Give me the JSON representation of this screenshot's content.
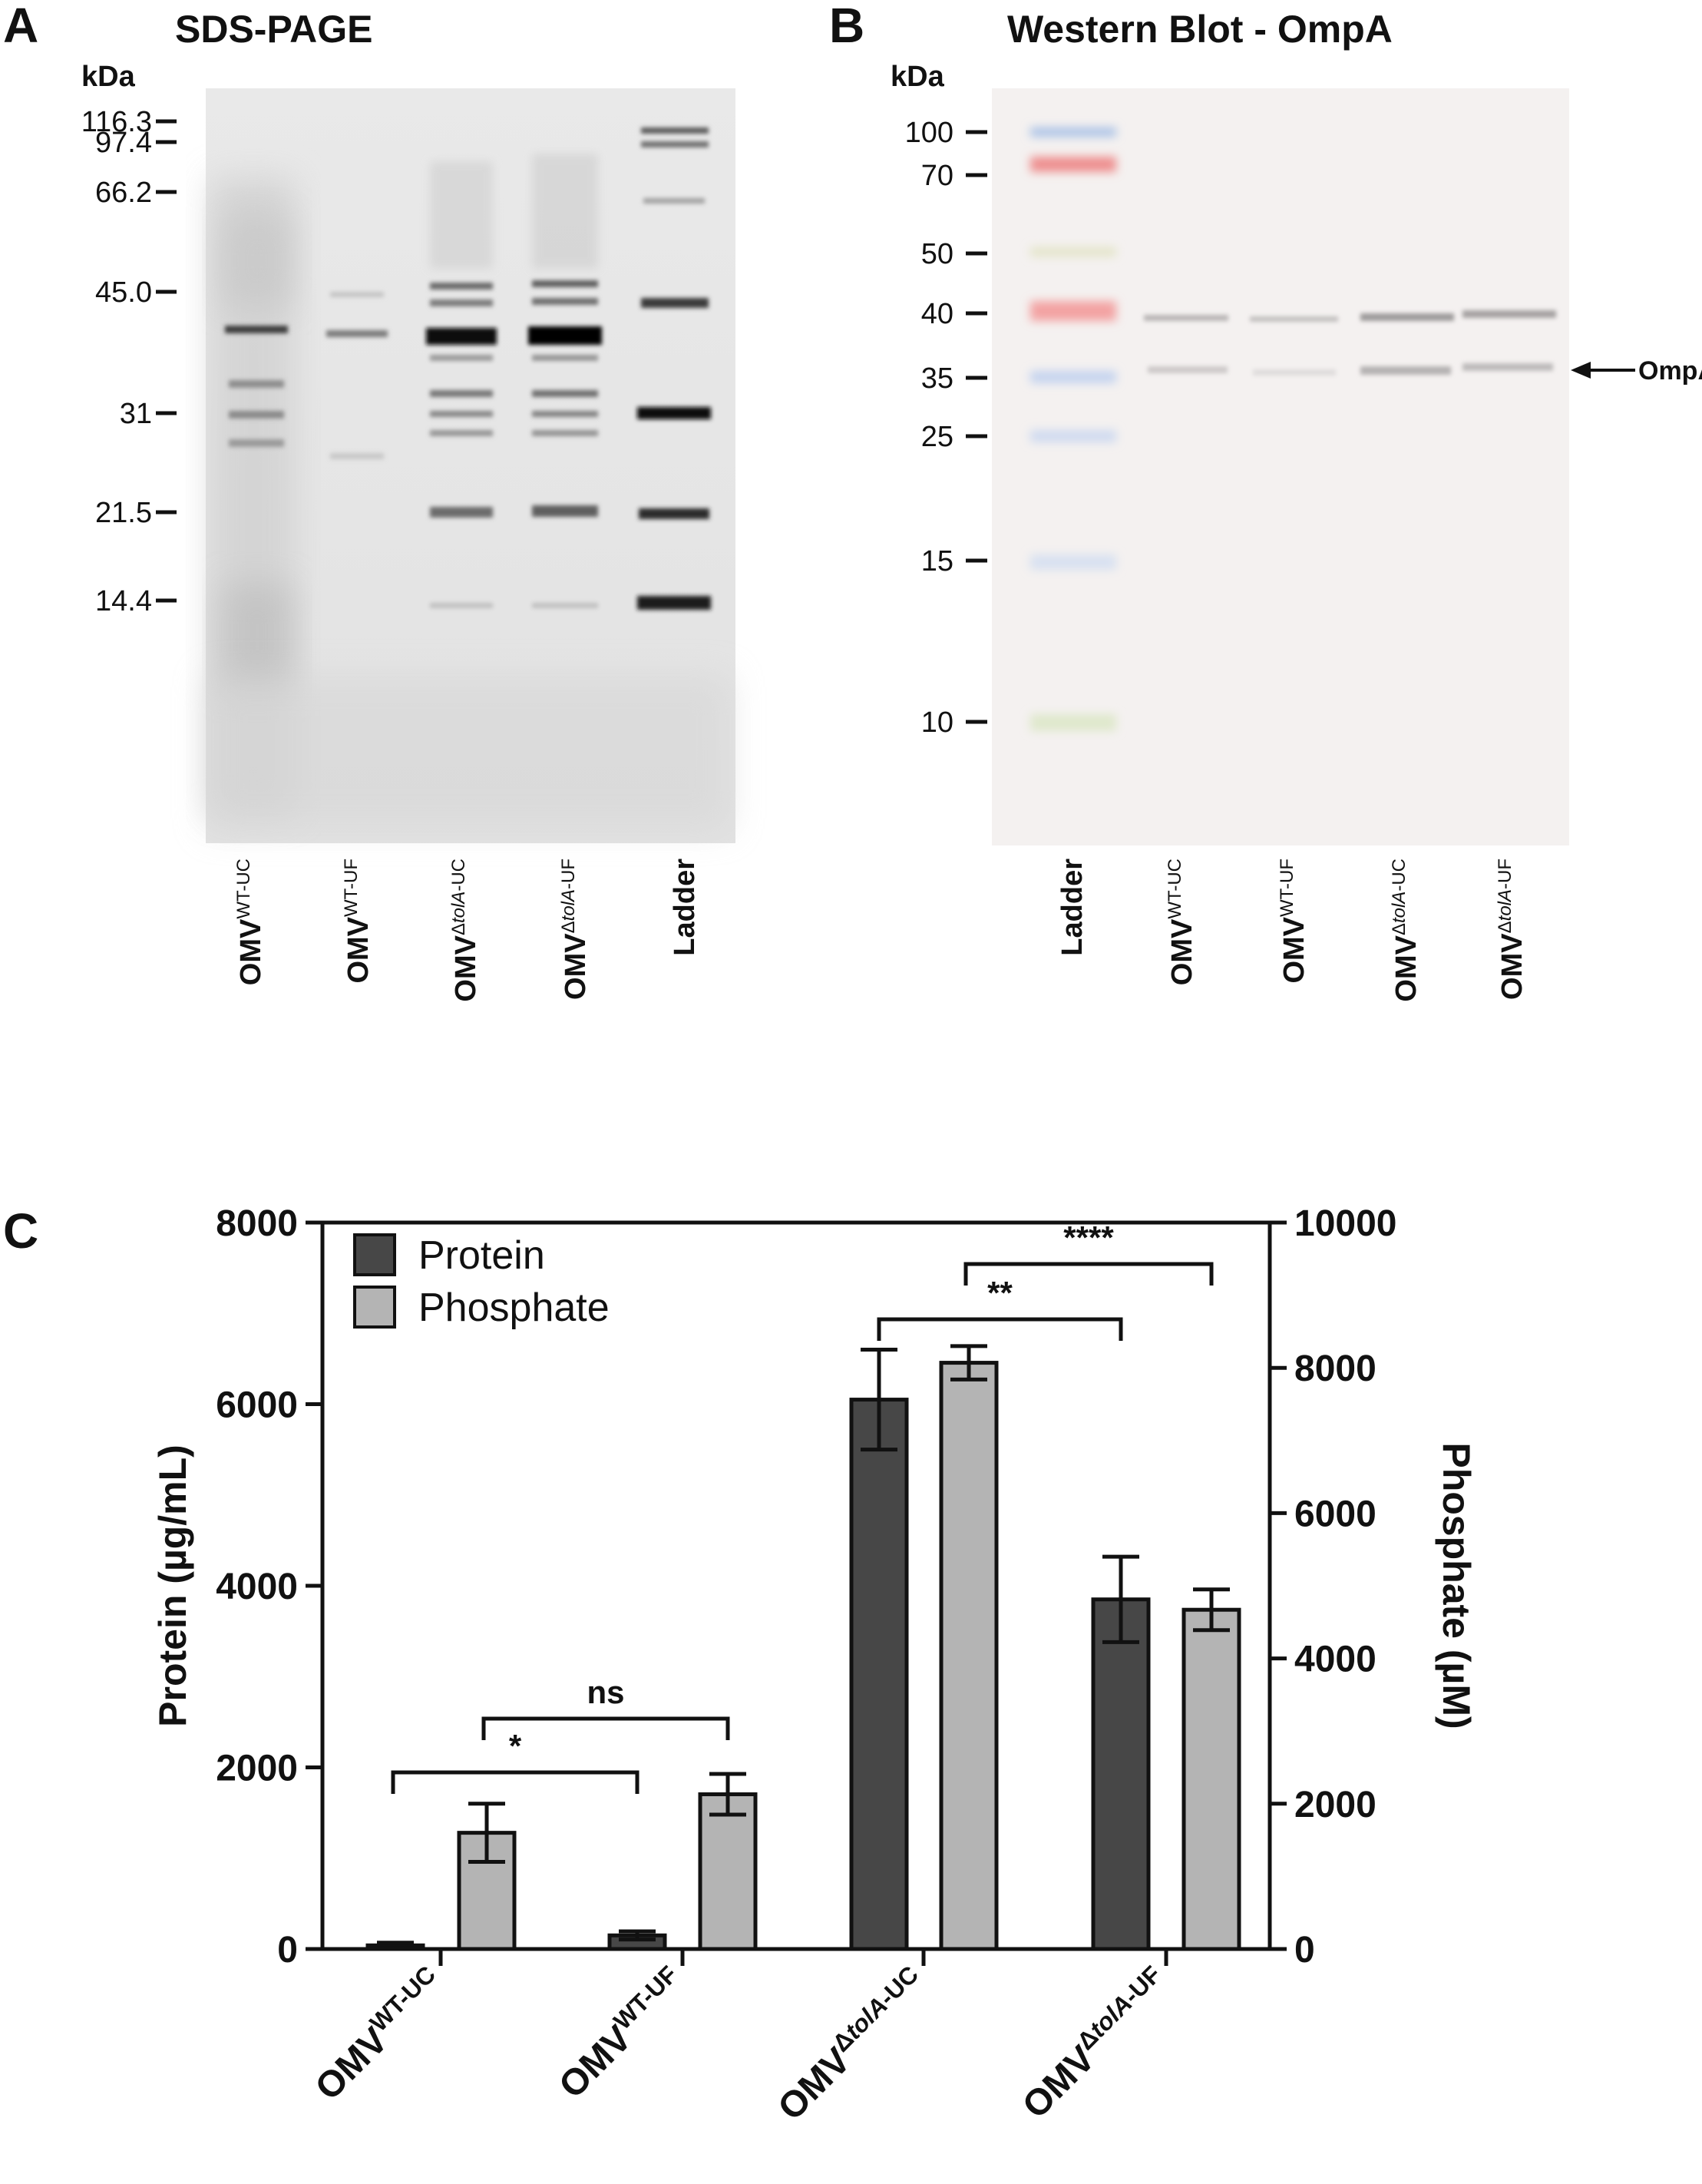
{
  "panel_a": {
    "letter": "A",
    "title": "SDS-PAGE",
    "unit": "kDa",
    "markers": [
      "116.3",
      "97.4",
      "66.2",
      "45.0",
      "31",
      "21.5",
      "14.4"
    ],
    "lanes": [
      {
        "main": "OMV",
        "sup": "WT-UC"
      },
      {
        "main": "OMV",
        "sup": "WT-UF"
      },
      {
        "main": "OMV",
        "sup": "ΔtolA-UC"
      },
      {
        "main": "OMV",
        "sup": "ΔtolA-UF"
      },
      {
        "main": "Ladder",
        "sup": ""
      }
    ]
  },
  "panel_b": {
    "letter": "B",
    "title": "Western Blot - OmpA",
    "unit": "kDa",
    "markers": [
      "100",
      "70",
      "50",
      "40",
      "35",
      "25",
      "15",
      "10"
    ],
    "band_label": "OmpA",
    "lanes": [
      {
        "main": "Ladder",
        "sup": ""
      },
      {
        "main": "OMV",
        "sup": "WT-UC"
      },
      {
        "main": "OMV",
        "sup": "WT-UF"
      },
      {
        "main": "OMV",
        "sup": "ΔtolA-UC"
      },
      {
        "main": "OMV",
        "sup": "ΔtolA-UF"
      }
    ]
  },
  "panel_c": {
    "letter": "C",
    "colors": {
      "protein": "#474747",
      "phosphate": "#b4b4b4"
    },
    "chart_data": {
      "type": "bar",
      "categories": [
        {
          "main": "OMV",
          "sup": "WT-UC"
        },
        {
          "main": "OMV",
          "sup": "WT-UF"
        },
        {
          "main": "OMV",
          "sup": "ΔtolA-UC"
        },
        {
          "main": "OMV",
          "sup": "ΔtolA-UF"
        }
      ],
      "series": [
        {
          "name": "Protein",
          "axis": "left",
          "values": [
            40,
            150,
            6050,
            3850
          ],
          "errors": [
            30,
            45,
            550,
            470
          ]
        },
        {
          "name": "Phosphate",
          "axis": "right",
          "values": [
            1600,
            2130,
            8070,
            4670
          ],
          "errors": [
            400,
            280,
            230,
            280
          ]
        }
      ],
      "ylabel_left": "Protein (µg/mL)",
      "ylabel_right": "Phosphate (µM)",
      "ylim_left": [
        0,
        8000
      ],
      "ylim_right": [
        0,
        10000
      ],
      "yticks_left": [
        "0",
        "2000",
        "4000",
        "6000",
        "8000"
      ],
      "yticks_right": [
        "0",
        "2000",
        "4000",
        "6000",
        "8000",
        "10000"
      ],
      "legend": "top-left",
      "significance": [
        {
          "label": "*",
          "from": "OMV WT-UC Protein",
          "to": "OMV WT-UF Protein"
        },
        {
          "label": "ns",
          "from": "OMV WT-UC Phosphate",
          "to": "OMV WT-UF Phosphate"
        },
        {
          "label": "**",
          "from": "OMV ΔtolA-UC Protein",
          "to": "OMV ΔtolA-UF Protein"
        },
        {
          "label": "****",
          "from": "OMV ΔtolA-UC Phosphate",
          "to": "OMV ΔtolA-UF Phosphate"
        }
      ]
    }
  }
}
